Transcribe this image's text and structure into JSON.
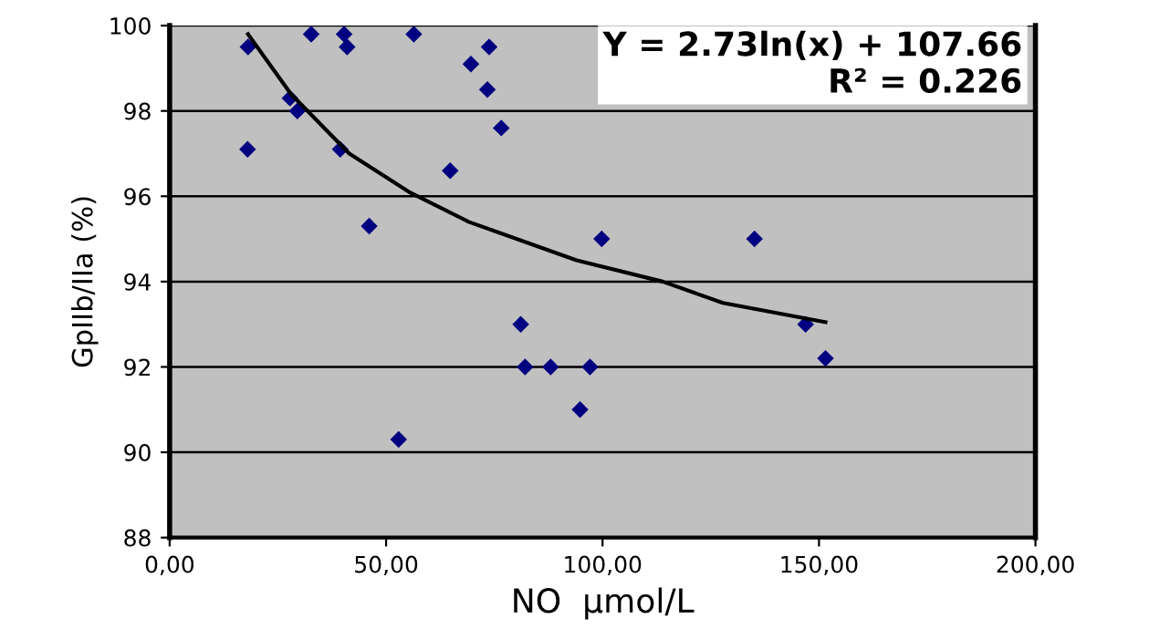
{
  "chart_data": {
    "type": "scatter",
    "xlabel": "NO  µmol/L",
    "ylabel": "GpIIb/IIa (%)",
    "annotations": [
      "Y = 2.73ln(x) + 107.66",
      "R² = 0.226"
    ],
    "series": [
      {
        "color": "#000080",
        "marker": "diamond",
        "x": [
          18.1,
          18,
          27.8,
          29.5,
          32.7,
          40.3,
          41,
          39.4,
          46.1,
          52.9,
          56.4,
          64.8,
          69.6,
          73.8,
          73.4,
          76.6,
          81.1,
          82.1,
          88.0,
          94.8,
          97.1,
          99.8,
          135.1,
          146.9,
          151.5
        ],
        "values": [
          99.5,
          97.1,
          98.3,
          98.0,
          99.8,
          99.8,
          99.5,
          97.1,
          95.3,
          90.3,
          99.8,
          96.6,
          99.1,
          99.5,
          98.5,
          97.6,
          93.0,
          92.0,
          92.0,
          91.0,
          92.0,
          95.0,
          95.0,
          93.0,
          92.2
        ]
      },
      {
        "type": "line",
        "color": "#000000",
        "x": [
          18.1,
          28.0,
          41.5,
          55.3,
          69.1,
          94.0,
          113.9,
          127.8,
          151.5
        ],
        "values": [
          99.8,
          98.4,
          97.0,
          96.1,
          95.4,
          94.5,
          94.0,
          93.5,
          93.05
        ]
      }
    ],
    "xlim": [
      0,
      200
    ],
    "xticks": [
      {
        "value": 0,
        "label": "0,00"
      },
      {
        "value": 50,
        "label": "50,00"
      },
      {
        "value": 100,
        "label": "100,00"
      },
      {
        "value": 150,
        "label": "150,00"
      },
      {
        "value": 200,
        "label": "200,00"
      }
    ],
    "ylim": [
      88,
      100
    ],
    "yticks": [
      88,
      90,
      92,
      94,
      96,
      98,
      100
    ],
    "grid": "y",
    "legend": false
  }
}
